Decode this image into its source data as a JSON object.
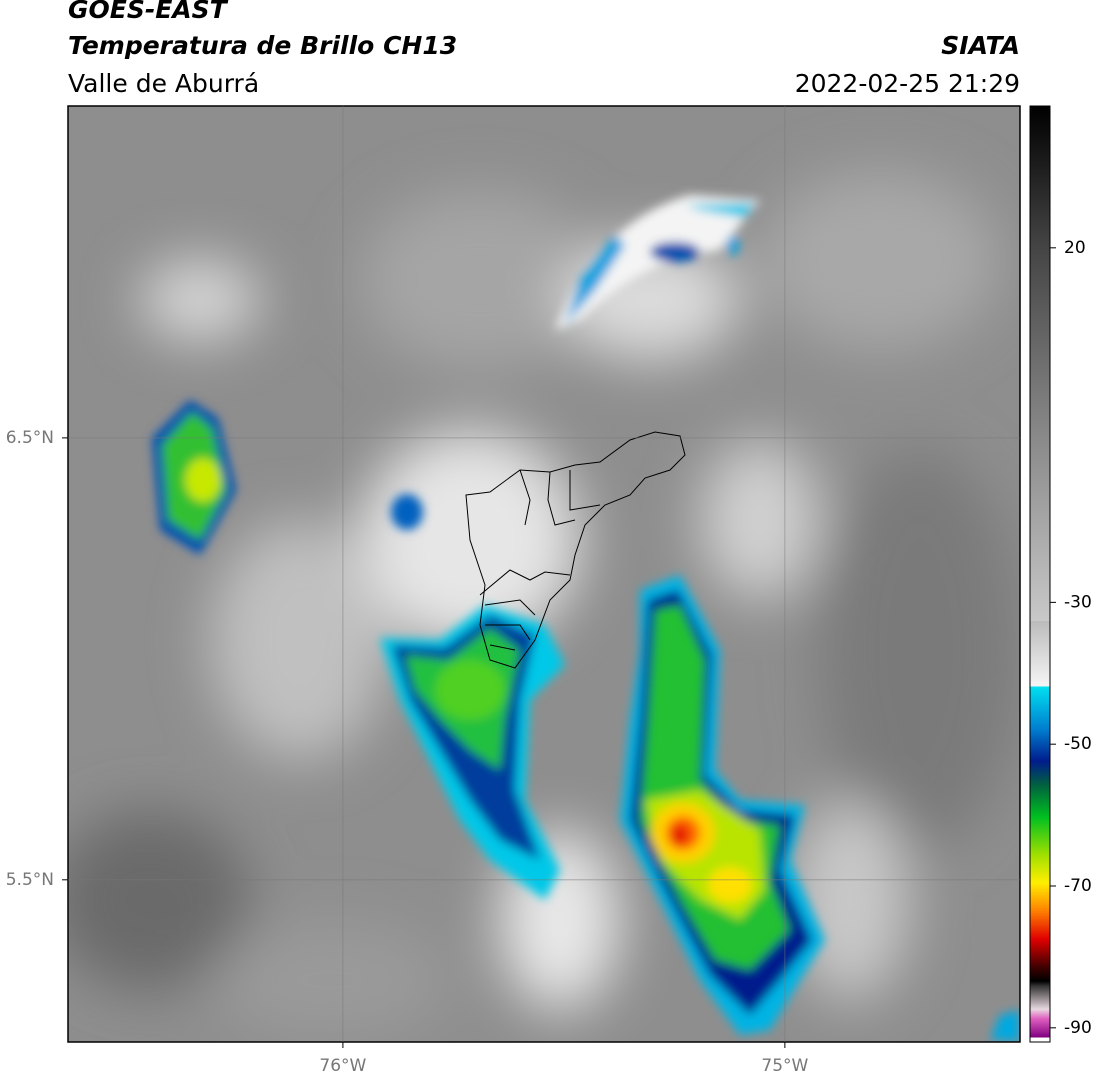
{
  "header": {
    "satellite": "GOES-EAST",
    "product": "Temperatura de Brillo CH13",
    "region": "Valle de Aburrá",
    "agency": "SIATA",
    "datetime": "2022-02-25 21:29"
  },
  "map": {
    "xlim": [
      -76.622,
      -74.468
    ],
    "ylim": [
      5.133,
      7.251
    ],
    "xticks": [
      {
        "value": -76,
        "label": "76°W"
      },
      {
        "value": -75,
        "label": "75°W"
      }
    ],
    "yticks": [
      {
        "value": 6.5,
        "label": "6.5°N"
      },
      {
        "value": 5.5,
        "label": "5.5°N"
      }
    ],
    "grid": true
  },
  "colorbar": {
    "lim": [
      -92,
      40
    ],
    "ticks": [
      20,
      -30,
      -50,
      -70,
      -90
    ]
  }
}
